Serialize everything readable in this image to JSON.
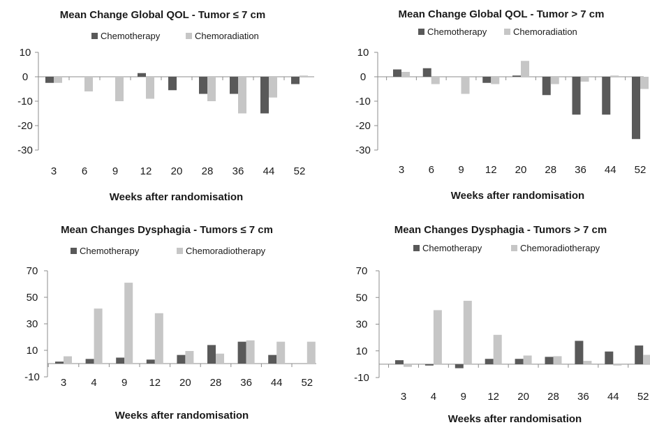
{
  "colors": {
    "chemotherapy": "#595959",
    "chemoradiation": "#c6c6c6"
  },
  "chart_data": [
    {
      "type": "bar",
      "title": "Mean Change Global QOL - Tumor ≤ 7 cm",
      "xlabel": "Weeks after randomisation",
      "ylabel": "",
      "categories": [
        "3",
        "6",
        "9",
        "12",
        "20",
        "28",
        "36",
        "44",
        "52"
      ],
      "ylim": [
        -30,
        10
      ],
      "yticks": [
        10,
        0,
        -10,
        -20,
        -30
      ],
      "legend": "top",
      "grid": false,
      "series": [
        {
          "name": "Chemotherapy",
          "values": [
            -2.5,
            0,
            0,
            1.5,
            -5.5,
            -7,
            -7,
            -15,
            -3
          ]
        },
        {
          "name": "Chemoradiation",
          "values": [
            -2.5,
            -6,
            -10,
            -9,
            0,
            -10,
            -15,
            -8.5,
            0.5
          ]
        }
      ]
    },
    {
      "type": "bar",
      "title": "Mean Change Global QOL - Tumor > 7 cm",
      "xlabel": "Weeks after randomisation",
      "ylabel": "",
      "categories": [
        "3",
        "6",
        "9",
        "12",
        "20",
        "28",
        "36",
        "44",
        "52"
      ],
      "ylim": [
        -30,
        10
      ],
      "yticks": [
        10,
        0,
        -10,
        -20,
        -30
      ],
      "legend": "top",
      "grid": false,
      "series": [
        {
          "name": "Chemotherapy",
          "values": [
            3,
            3.5,
            0,
            -2.5,
            0.5,
            -7.5,
            -15.5,
            -15.5,
            -25.5
          ]
        },
        {
          "name": "Chemoradiation",
          "values": [
            2,
            -3,
            -7,
            -3,
            6.5,
            -3,
            -2,
            0.5,
            -5
          ]
        }
      ]
    },
    {
      "type": "bar",
      "title": "Mean Changes Dysphagia - Tumors ≤ 7 cm",
      "xlabel": "Weeks after randomisation",
      "ylabel": "",
      "categories": [
        "3",
        "4",
        "9",
        "12",
        "20",
        "28",
        "36",
        "44",
        "52"
      ],
      "ylim": [
        -10,
        70
      ],
      "yticks": [
        70,
        50,
        30,
        10,
        -10
      ],
      "legend": "top",
      "grid": false,
      "series": [
        {
          "name": "Chemotherapy",
          "values": [
            1.5,
            3.5,
            4.5,
            3,
            6.5,
            14,
            16.5,
            6.5,
            0
          ]
        },
        {
          "name": "Chemoradiotherapy",
          "values": [
            5.5,
            41.5,
            61,
            38,
            9.5,
            7.5,
            17.5,
            16.5,
            16.5
          ]
        }
      ]
    },
    {
      "type": "bar",
      "title": "Mean Changes Dysphagia - Tumors > 7 cm",
      "xlabel": "Weeks after randomisation",
      "ylabel": "",
      "categories": [
        "3",
        "4",
        "9",
        "12",
        "20",
        "28",
        "36",
        "44",
        "52"
      ],
      "ylim": [
        -10,
        70
      ],
      "yticks": [
        70,
        50,
        30,
        10,
        -10
      ],
      "legend": "top",
      "grid": false,
      "series": [
        {
          "name": "Chemotherapy",
          "values": [
            3,
            -1,
            -3,
            4,
            4,
            5.5,
            17.5,
            9.5,
            14
          ]
        },
        {
          "name": "Chemoradiotherapy",
          "values": [
            -2,
            40.5,
            47.5,
            22,
            6.5,
            6,
            2.5,
            -1,
            7
          ]
        }
      ]
    }
  ]
}
